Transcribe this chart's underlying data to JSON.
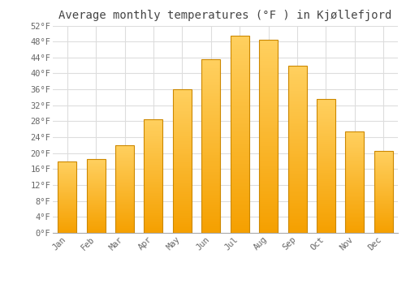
{
  "title": "Average monthly temperatures (°F ) in Kjøllefjord",
  "months": [
    "Jan",
    "Feb",
    "Mar",
    "Apr",
    "May",
    "Jun",
    "Jul",
    "Aug",
    "Sep",
    "Oct",
    "Nov",
    "Dec"
  ],
  "values": [
    18.0,
    18.5,
    22.0,
    28.5,
    36.0,
    43.5,
    49.5,
    48.5,
    42.0,
    33.5,
    25.5,
    20.5
  ],
  "bar_color_top": "#FFD060",
  "bar_color_bottom": "#F5A000",
  "bar_edge_color": "#CC8800",
  "background_color": "#FFFFFF",
  "grid_color": "#DDDDDD",
  "text_color": "#444444",
  "tick_label_color": "#666666",
  "ylim": [
    0,
    52
  ],
  "yticks": [
    0,
    4,
    8,
    12,
    16,
    20,
    24,
    28,
    32,
    36,
    40,
    44,
    48,
    52
  ],
  "title_fontsize": 10,
  "tick_fontsize": 7.5,
  "font_family": "monospace"
}
